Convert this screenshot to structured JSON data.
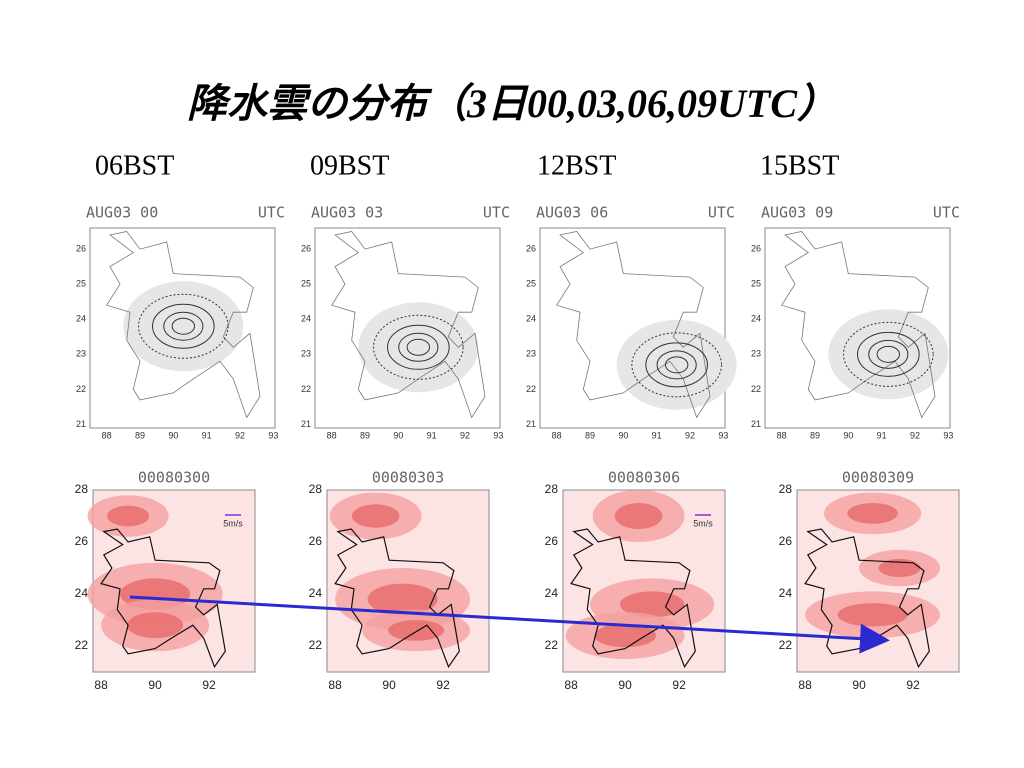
{
  "header": {
    "title": "降水雲の分布（3日00,03,06,09UTC）"
  },
  "columns": [
    "06BST",
    "09BST",
    "12BST",
    "15BST"
  ],
  "top_panels": [
    {
      "label": "AUG03 00",
      "unit": "UTC"
    },
    {
      "label": "AUG03 03",
      "unit": "UTC"
    },
    {
      "label": "AUG03 06",
      "unit": "UTC"
    },
    {
      "label": "AUG03 09",
      "unit": "UTC"
    }
  ],
  "top_axis": {
    "yticks": [
      "21",
      "22",
      "23",
      "24",
      "25",
      "26"
    ],
    "xticks": [
      "88",
      "89",
      "90",
      "91",
      "92",
      "93"
    ]
  },
  "bottom_panels": [
    {
      "label": "00080300",
      "legend": "5m/s"
    },
    {
      "label": "00080303"
    },
    {
      "label": "00080306",
      "legend": "5m/s"
    },
    {
      "label": "00080309"
    }
  ],
  "bottom_axis": {
    "yticks": [
      "22",
      "24",
      "26",
      "28"
    ],
    "xticks": [
      "88",
      "90",
      "92"
    ]
  }
}
